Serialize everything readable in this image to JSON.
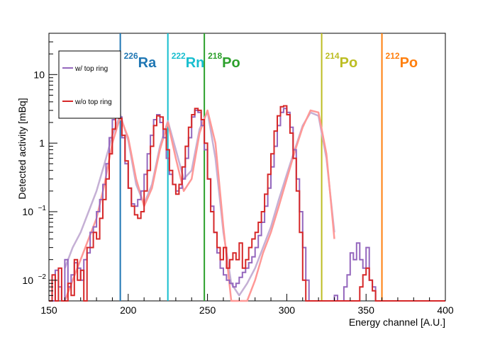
{
  "chart_data": {
    "type": "line",
    "xlabel": "Energy channel [A.U.]",
    "ylabel": "Detected activity [mBq]",
    "x_range": [
      150,
      400
    ],
    "y_range": [
      0.005,
      40
    ],
    "y_scale": "log",
    "x_ticks": [
      150,
      200,
      250,
      300,
      350,
      400
    ],
    "y_ticks": [
      {
        "value": 0.01,
        "base": "10",
        "exp": "−2"
      },
      {
        "value": 0.1,
        "base": "10",
        "exp": "−1"
      },
      {
        "value": 1,
        "base": "1",
        "exp": ""
      },
      {
        "value": 10,
        "base": "10",
        "exp": ""
      }
    ],
    "legend": {
      "position": "top-left",
      "entries": [
        {
          "label": "w/ top ring",
          "color": "#9467bd"
        },
        {
          "label": "w/o top ring",
          "color": "#d62728"
        }
      ]
    },
    "peak_markers": [
      {
        "x": 195,
        "mass": "226",
        "element": "Ra",
        "color": "#1f77b4"
      },
      {
        "x": 225,
        "mass": "222",
        "element": "Rn",
        "color": "#17becf"
      },
      {
        "x": 248,
        "mass": "218",
        "element": "Po",
        "color": "#2ca02c"
      },
      {
        "x": 322,
        "mass": "214",
        "element": "Po",
        "color": "#bcbd22"
      },
      {
        "x": 360,
        "mass": "212",
        "element": "Po",
        "color": "#ff7f0e"
      }
    ],
    "series": [
      {
        "name": "w/ top ring",
        "kind": "histogram",
        "color": "#9467bd",
        "x": [
          150,
          152,
          154,
          156,
          158,
          160,
          162,
          164,
          166,
          168,
          170,
          172,
          174,
          176,
          178,
          180,
          182,
          184,
          186,
          188,
          190,
          192,
          194,
          196,
          198,
          200,
          202,
          204,
          206,
          208,
          210,
          212,
          214,
          216,
          218,
          220,
          222,
          224,
          226,
          228,
          230,
          232,
          234,
          236,
          238,
          240,
          242,
          244,
          246,
          248,
          250,
          252,
          254,
          256,
          258,
          260,
          262,
          264,
          266,
          268,
          270,
          272,
          274,
          276,
          278,
          280,
          282,
          284,
          286,
          288,
          290,
          292,
          294,
          296,
          298,
          300,
          302,
          304,
          306,
          308,
          310,
          312,
          314,
          316,
          318,
          320,
          322,
          324,
          326,
          328,
          330,
          332,
          334,
          336,
          338,
          340,
          342,
          344,
          346,
          348,
          350,
          352,
          354,
          356,
          358,
          360,
          362,
          364,
          366,
          368,
          370,
          372,
          374,
          376,
          378,
          380,
          382,
          384,
          386,
          388,
          390,
          392,
          394,
          396,
          398
        ],
        "values": [
          0.005,
          0.005,
          0.014,
          0.008,
          0.005,
          0.02,
          0.008,
          0.012,
          0.018,
          0.015,
          0.01,
          0.02,
          0.025,
          0.05,
          0.06,
          0.1,
          0.15,
          0.25,
          0.5,
          1.2,
          2.2,
          3.0,
          2.4,
          1.2,
          0.5,
          0.22,
          0.13,
          0.12,
          0.15,
          0.2,
          0.35,
          0.7,
          1.3,
          2.2,
          2.6,
          2.0,
          1.2,
          0.6,
          0.35,
          0.25,
          0.2,
          0.22,
          0.3,
          0.6,
          1.2,
          2.4,
          3.0,
          2.8,
          1.8,
          0.8,
          0.3,
          0.12,
          0.05,
          0.025,
          0.015,
          0.012,
          0.01,
          0.009,
          0.008,
          0.009,
          0.011,
          0.013,
          0.015,
          0.018,
          0.022,
          0.03,
          0.045,
          0.07,
          0.12,
          0.22,
          0.45,
          0.9,
          1.8,
          2.8,
          3.2,
          2.8,
          1.7,
          0.8,
          0.3,
          0.1,
          0.03,
          0.01,
          0.005,
          0.005,
          0.005,
          0.005,
          0.005,
          0.005,
          0.005,
          0.005,
          0.006,
          0.005,
          0.005,
          0.008,
          0.012,
          0.025,
          0.02,
          0.035,
          0.02,
          0.015,
          0.03,
          0.01,
          0.008,
          0.005,
          0.005,
          0.005,
          0.005,
          0.005,
          0.005,
          0.005,
          0.005,
          0.005,
          0.005,
          0.005,
          0.005,
          0.005,
          0.005,
          0.005,
          0.005,
          0.005,
          0.005,
          0.005,
          0.005,
          0.005,
          0.005
        ]
      },
      {
        "name": "w/o top ring",
        "kind": "histogram",
        "color": "#d62728",
        "x": [
          150,
          152,
          154,
          156,
          158,
          160,
          162,
          164,
          166,
          168,
          170,
          172,
          174,
          176,
          178,
          180,
          182,
          184,
          186,
          188,
          190,
          192,
          194,
          196,
          198,
          200,
          202,
          204,
          206,
          208,
          210,
          212,
          214,
          216,
          218,
          220,
          222,
          224,
          226,
          228,
          230,
          232,
          234,
          236,
          238,
          240,
          242,
          244,
          246,
          248,
          250,
          252,
          254,
          256,
          258,
          260,
          262,
          264,
          266,
          268,
          270,
          272,
          274,
          276,
          278,
          280,
          282,
          284,
          286,
          288,
          290,
          292,
          294,
          296,
          298,
          300,
          302,
          304,
          306,
          308,
          310,
          312,
          314,
          316,
          318,
          320,
          322,
          324,
          326,
          328,
          330,
          332,
          334,
          336,
          338,
          340,
          342,
          344,
          346,
          348,
          350,
          352,
          354,
          356,
          358,
          360,
          362,
          364,
          366,
          368,
          370,
          372,
          374,
          376,
          378,
          380,
          382,
          384,
          386,
          388,
          390,
          392,
          394,
          396,
          398
        ],
        "values": [
          0.005,
          0.012,
          0.005,
          0.015,
          0.005,
          0.005,
          0.009,
          0.006,
          0.02,
          0.01,
          0.014,
          0.005,
          0.03,
          0.03,
          0.05,
          0.04,
          0.08,
          0.15,
          0.3,
          0.7,
          1.6,
          2.6,
          2.3,
          1.3,
          0.55,
          0.22,
          0.12,
          0.09,
          0.08,
          0.1,
          0.2,
          0.4,
          0.9,
          1.8,
          2.5,
          2.4,
          1.6,
          0.8,
          0.4,
          0.25,
          0.18,
          0.25,
          0.45,
          0.9,
          1.7,
          2.6,
          3.2,
          3.0,
          2.2,
          1.0,
          0.3,
          0.1,
          0.05,
          0.03,
          0.02,
          0.03,
          0.015,
          0.02,
          0.025,
          0.02,
          0.035,
          0.015,
          0.02,
          0.03,
          0.04,
          0.05,
          0.07,
          0.1,
          0.18,
          0.35,
          0.7,
          1.5,
          2.5,
          3.4,
          3.5,
          2.6,
          1.4,
          0.6,
          0.2,
          0.05,
          0.01,
          0.005,
          0.005,
          0.005,
          0.005,
          0.005,
          0.005,
          0.005,
          0.005,
          0.005,
          0.005,
          0.005,
          0.005,
          0.005,
          0.005,
          0.005,
          0.005,
          0.005,
          0.008,
          0.012,
          0.015,
          0.01,
          0.007,
          0.005,
          0.005,
          0.005,
          0.005,
          0.005,
          0.005,
          0.005,
          0.005,
          0.005,
          0.005,
          0.005,
          0.005,
          0.005,
          0.005,
          0.005,
          0.005,
          0.005,
          0.005,
          0.005,
          0.005,
          0.005,
          0.005
        ]
      },
      {
        "name": "w/ top ring fit",
        "kind": "curve",
        "color": "#c5b0d5",
        "x": [
          160,
          165,
          170,
          175,
          180,
          185,
          190,
          195,
          200,
          205,
          210,
          215,
          220,
          225,
          230,
          235,
          240,
          245,
          250,
          255,
          260,
          265,
          270,
          275,
          280,
          285,
          290,
          295,
          300,
          305,
          310,
          315,
          320,
          325,
          330
        ],
        "values": [
          0.015,
          0.03,
          0.05,
          0.1,
          0.2,
          0.5,
          1.3,
          2.6,
          1.1,
          0.25,
          0.13,
          0.25,
          0.9,
          2.1,
          0.8,
          0.3,
          0.4,
          1.6,
          2.9,
          0.6,
          0.05,
          0.009,
          0.006,
          0.009,
          0.015,
          0.03,
          0.06,
          0.15,
          0.35,
          0.8,
          1.8,
          2.8,
          2.5,
          0.6,
          0.05
        ]
      },
      {
        "name": "w/o top ring fit",
        "kind": "curve",
        "color": "#ff9896",
        "x": [
          160,
          165,
          170,
          175,
          180,
          185,
          190,
          195,
          200,
          205,
          210,
          215,
          220,
          225,
          230,
          235,
          240,
          245,
          250,
          255,
          260,
          265,
          270,
          275,
          280,
          285,
          290,
          295,
          300,
          305,
          310,
          315,
          320,
          325,
          330
        ],
        "values": [
          0.005,
          0.01,
          0.02,
          0.04,
          0.08,
          0.25,
          1.0,
          2.4,
          1.2,
          0.3,
          0.12,
          0.22,
          0.8,
          2.0,
          0.6,
          0.2,
          0.3,
          1.4,
          3.0,
          1.0,
          0.06,
          0.004,
          0.003,
          0.005,
          0.01,
          0.025,
          0.05,
          0.12,
          0.3,
          0.75,
          1.7,
          3.0,
          2.8,
          0.7,
          0.04
        ]
      }
    ]
  }
}
